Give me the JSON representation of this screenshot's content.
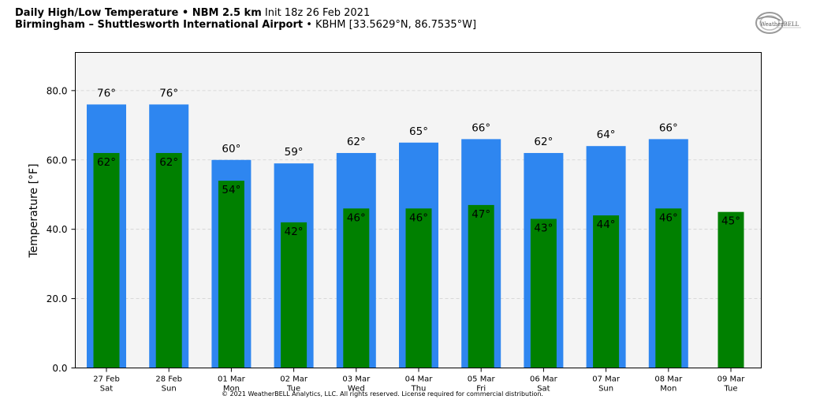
{
  "header": {
    "title_bold": "Daily High/Low Temperature • NBM 2.5 km",
    "title_init": "Init 18z 26 Feb 2021",
    "location_bold": "Birmingham – Shuttlesworth International Airport",
    "location_rest": "• KBHM [33.5629°N, 86.7535°W]"
  },
  "logo": {
    "text": "WeatherBELL",
    "icon": "weatherbell-logo-icon"
  },
  "footer": {
    "copyright": "© 2021 WeatherBELL Analytics, LLC. All rights reserved. License required for commercial distribution."
  },
  "colors": {
    "high": "#2e86f0",
    "low": "#008000",
    "plot_bg": "#f4f4f4",
    "grid": "#cfcfcf"
  },
  "chart_data": {
    "type": "bar",
    "ylabel": "Temperature [°F]",
    "ylim": [
      0,
      91
    ],
    "yticks": [
      "0.0",
      "20.0",
      "40.0",
      "60.0",
      "80.0"
    ],
    "grid": true,
    "categories": [
      {
        "date": "27 Feb",
        "day": "Sat"
      },
      {
        "date": "28 Feb",
        "day": "Sun"
      },
      {
        "date": "01 Mar",
        "day": "Mon"
      },
      {
        "date": "02 Mar",
        "day": "Tue"
      },
      {
        "date": "03 Mar",
        "day": "Wed"
      },
      {
        "date": "04 Mar",
        "day": "Thu"
      },
      {
        "date": "05 Mar",
        "day": "Fri"
      },
      {
        "date": "06 Mar",
        "day": "Sat"
      },
      {
        "date": "07 Mar",
        "day": "Sun"
      },
      {
        "date": "08 Mar",
        "day": "Mon"
      },
      {
        "date": "09 Mar",
        "day": "Tue"
      }
    ],
    "series": [
      {
        "key": "high",
        "values": [
          76,
          76,
          60,
          59,
          62,
          65,
          66,
          62,
          64,
          66,
          null
        ],
        "labels": [
          "76°",
          "76°",
          "60°",
          "59°",
          "62°",
          "65°",
          "66°",
          "62°",
          "64°",
          "66°",
          ""
        ]
      },
      {
        "key": "low",
        "values": [
          62,
          62,
          54,
          42,
          46,
          46,
          47,
          43,
          44,
          46,
          45
        ],
        "labels": [
          "62°",
          "62°",
          "54°",
          "42°",
          "46°",
          "46°",
          "47°",
          "43°",
          "44°",
          "46°",
          "45°"
        ]
      }
    ]
  }
}
